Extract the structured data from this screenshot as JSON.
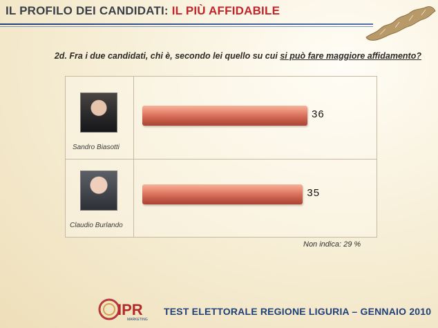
{
  "header": {
    "title_main": "IL PROFILO DEI CANDIDATI:",
    "title_accent": "IL PIÙ AFFIDABILE"
  },
  "question": {
    "prefix": "2d. Fra i due candidati, chi è, secondo lei quello su cui ",
    "underlined": "si può fare maggiore affidamento?"
  },
  "chart_data": {
    "type": "bar",
    "categories": [
      "Sandro Biasotti",
      "Claudio Burlando"
    ],
    "values": [
      36,
      35
    ],
    "data_labels": [
      "36",
      "35"
    ],
    "xlim": [
      0,
      50
    ],
    "colors": {
      "bar": "#d06a55"
    }
  },
  "note": "Non indica: 29 %",
  "logo": {
    "text": "IPR",
    "sub": "MARKETING"
  },
  "footer": "TEST ELETTORALE REGIONE LIGURIA – GENNAIO 2010"
}
